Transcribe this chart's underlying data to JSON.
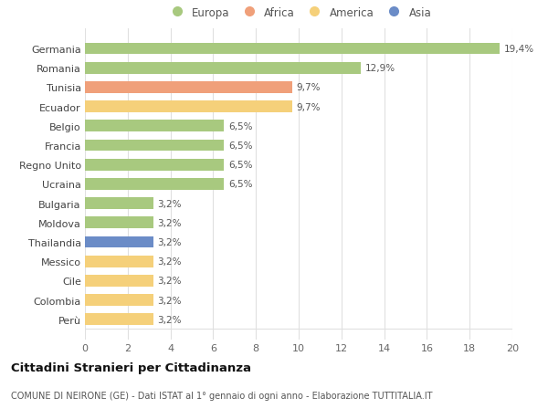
{
  "categories": [
    "Germania",
    "Romania",
    "Tunisia",
    "Ecuador",
    "Belgio",
    "Francia",
    "Regno Unito",
    "Ucraina",
    "Bulgaria",
    "Moldova",
    "Thailandia",
    "Messico",
    "Cile",
    "Colombia",
    "Perù"
  ],
  "values": [
    19.4,
    12.9,
    9.7,
    9.7,
    6.5,
    6.5,
    6.5,
    6.5,
    3.2,
    3.2,
    3.2,
    3.2,
    3.2,
    3.2,
    3.2
  ],
  "continents": [
    "Europa",
    "Europa",
    "Africa",
    "America",
    "Europa",
    "Europa",
    "Europa",
    "Europa",
    "Europa",
    "Europa",
    "Asia",
    "America",
    "America",
    "America",
    "America"
  ],
  "labels": [
    "19,4%",
    "12,9%",
    "9,7%",
    "9,7%",
    "6,5%",
    "6,5%",
    "6,5%",
    "6,5%",
    "3,2%",
    "3,2%",
    "3,2%",
    "3,2%",
    "3,2%",
    "3,2%",
    "3,2%"
  ],
  "colors": {
    "Europa": "#a8c97f",
    "Africa": "#f0a07a",
    "America": "#f5d07a",
    "Asia": "#6b8cc7"
  },
  "legend_items": [
    "Europa",
    "Africa",
    "America",
    "Asia"
  ],
  "title": "Cittadini Stranieri per Cittadinanza",
  "subtitle": "COMUNE DI NEIRONE (GE) - Dati ISTAT al 1° gennaio di ogni anno - Elaborazione TUTTITALIA.IT",
  "xlim": [
    0,
    20
  ],
  "xticks": [
    0,
    2,
    4,
    6,
    8,
    10,
    12,
    14,
    16,
    18,
    20
  ],
  "background_color": "#ffffff",
  "grid_color": "#e0e0e0"
}
